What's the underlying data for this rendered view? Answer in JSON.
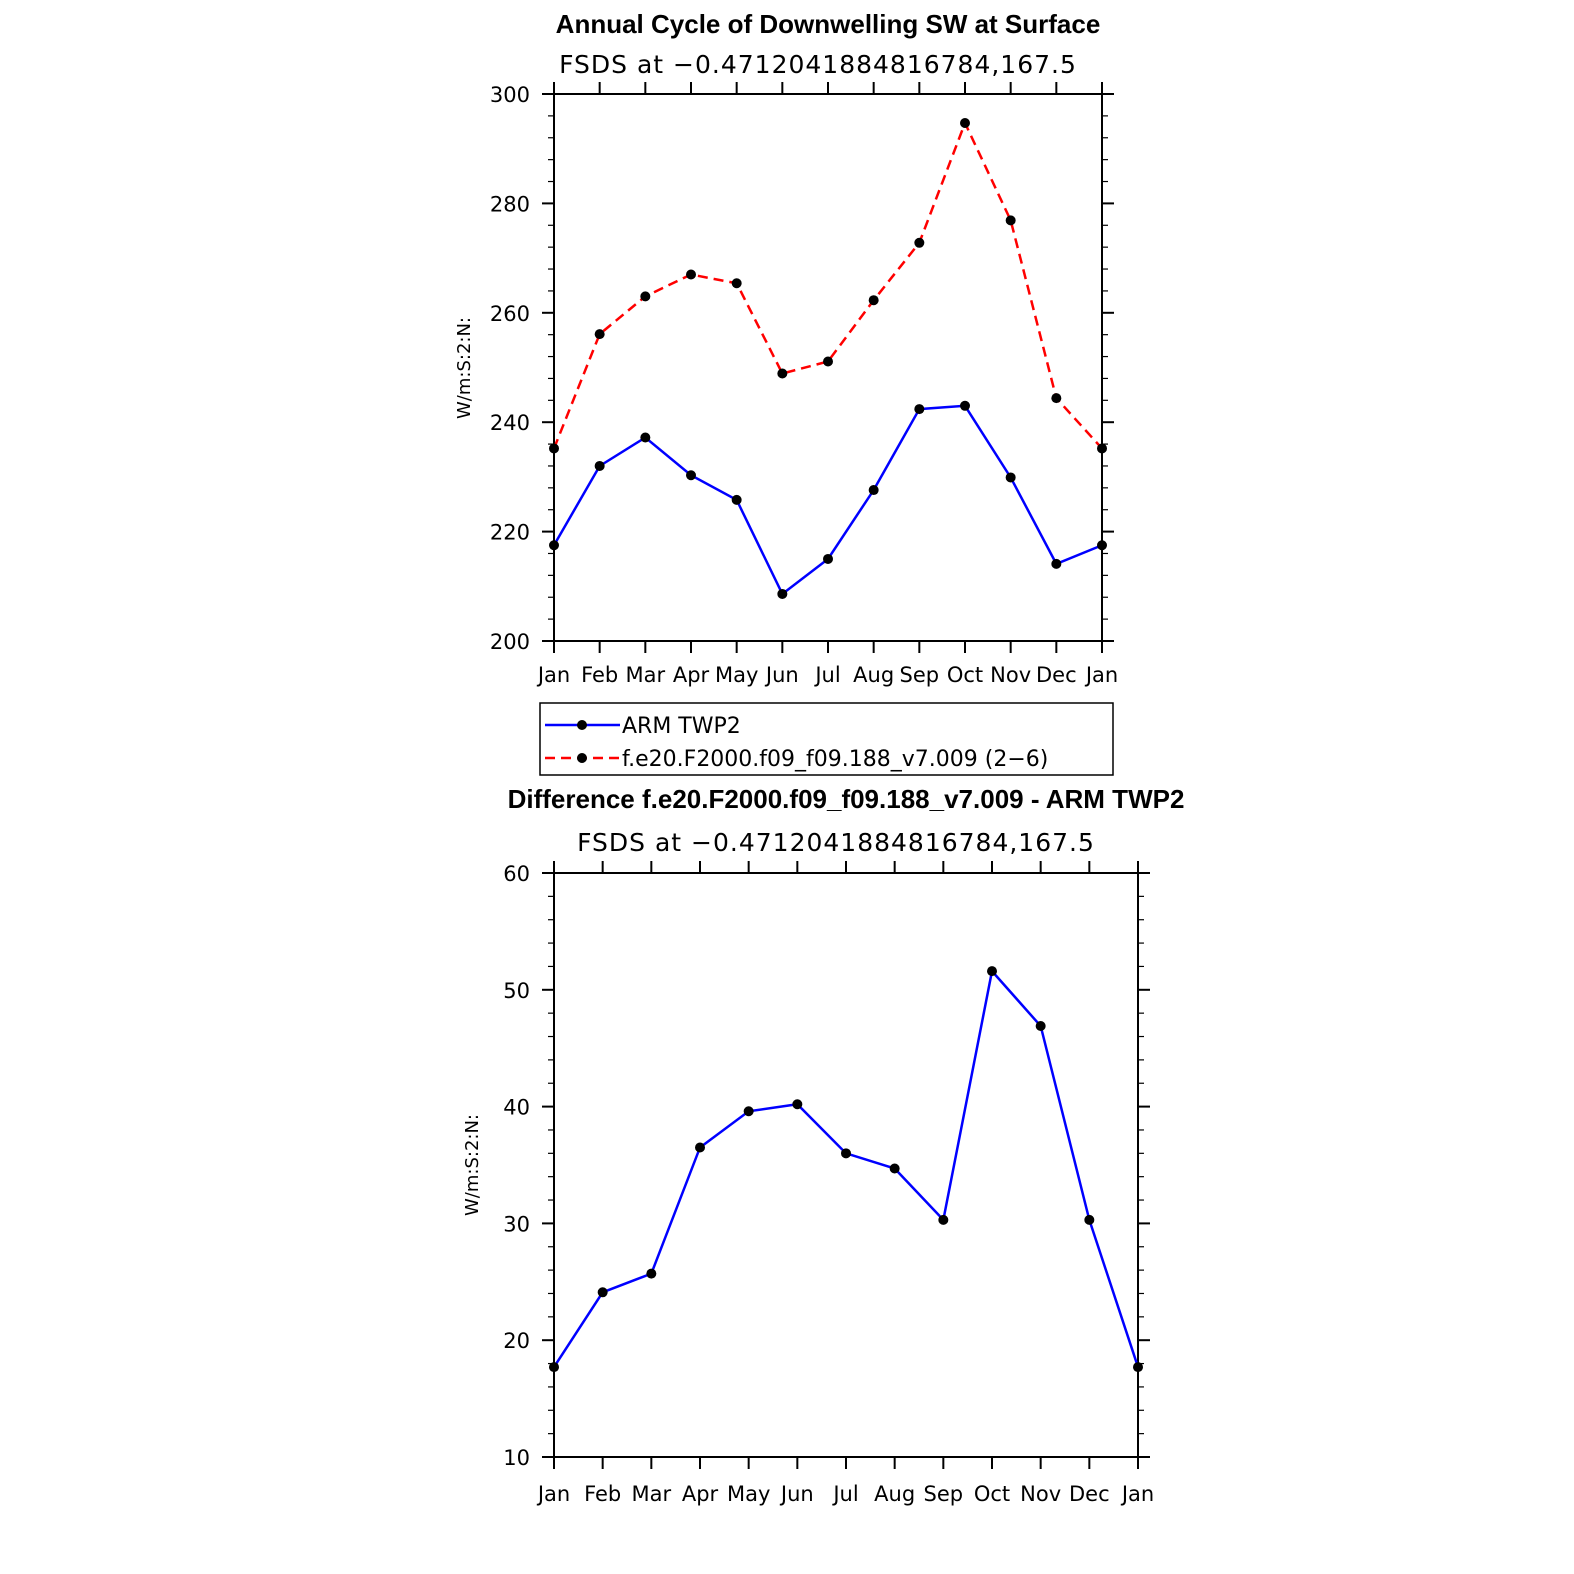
{
  "chart_data": [
    {
      "type": "line",
      "title": "Annual Cycle of Downwelling SW at Surface",
      "subtitle": "FSDS at −0.4712041884816784,167.5",
      "ylabel": "W/m:S:2:N:",
      "xlabel": "",
      "categories": [
        "Jan",
        "Feb",
        "Mar",
        "Apr",
        "May",
        "Jun",
        "Jul",
        "Aug",
        "Sep",
        "Oct",
        "Nov",
        "Dec",
        "Jan"
      ],
      "ylim": [
        200,
        300
      ],
      "yticks": [
        200,
        220,
        240,
        260,
        280,
        300
      ],
      "series": [
        {
          "name": "ARM TWP2",
          "color": "#0000ff",
          "dash": false,
          "values": [
            217.5,
            232,
            237.2,
            230.3,
            225.8,
            208.6,
            215,
            227.6,
            242.4,
            243,
            229.9,
            214.1,
            217.5
          ]
        },
        {
          "name": "f.e20.F2000.f09_f09.188_v7.009 (2−6)",
          "color": "#ff0000",
          "dash": true,
          "values": [
            235.2,
            256.1,
            263,
            267,
            265.4,
            248.9,
            251.1,
            262.3,
            272.8,
            294.7,
            276.9,
            244.4,
            235.2
          ]
        }
      ]
    },
    {
      "type": "line",
      "title": "Difference f.e20.F2000.f09_f09.188_v7.009 - ARM TWP2",
      "subtitle": "FSDS at −0.4712041884816784,167.5",
      "ylabel": "W/m:S:2:N:",
      "xlabel": "",
      "categories": [
        "Jan",
        "Feb",
        "Mar",
        "Apr",
        "May",
        "Jun",
        "Jul",
        "Aug",
        "Sep",
        "Oct",
        "Nov",
        "Dec",
        "Jan"
      ],
      "ylim": [
        10,
        60
      ],
      "yticks": [
        10,
        20,
        30,
        40,
        50,
        60
      ],
      "series": [
        {
          "name": "Difference",
          "color": "#0000ff",
          "dash": false,
          "values": [
            17.7,
            24.1,
            25.7,
            36.5,
            39.6,
            40.2,
            36,
            34.7,
            30.3,
            51.6,
            46.9,
            30.3,
            17.7
          ]
        }
      ]
    }
  ]
}
